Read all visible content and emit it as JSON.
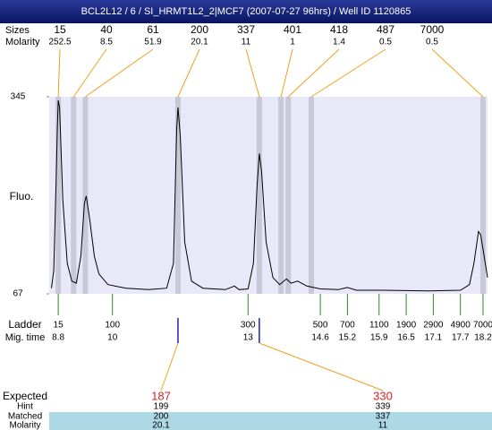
{
  "header": {
    "title": "BCL2L12 / 6 / SI_HRMT1L2_2|MCF7 (2007-07-27 96hrs) / Well ID 1120865"
  },
  "top": {
    "size_label": "Sizes",
    "molarity_label": "Molarity",
    "peaks": [
      {
        "size": 15,
        "molarity": 252.5,
        "time": 8.8
      },
      {
        "size": 40,
        "molarity": 8.5,
        "time": 9.14
      },
      {
        "size": 61,
        "molarity": 51.9,
        "time": 9.4
      },
      {
        "size": 200,
        "molarity": 20.1,
        "time": 11.45
      },
      {
        "size": 337,
        "molarity": 11,
        "time": 13.25
      },
      {
        "size": 401,
        "molarity": 1,
        "time": 13.73
      },
      {
        "size": 418,
        "molarity": 1.4,
        "time": 13.89
      },
      {
        "size": 487,
        "molarity": 0.5,
        "time": 14.4
      },
      {
        "size": 7000,
        "molarity": 0.5,
        "time": 18.2
      }
    ]
  },
  "plot": {
    "y_label": "Fluo.",
    "ylim": [
      67,
      345
    ],
    "yticks": [
      345,
      67
    ],
    "xlim": [
      8.6,
      18.3
    ],
    "trace": {
      "time": [
        8.65,
        8.7,
        8.75,
        8.78,
        8.8,
        8.83,
        8.9,
        9.0,
        9.1,
        9.2,
        9.3,
        9.38,
        9.42,
        9.5,
        9.6,
        9.7,
        9.9,
        10.3,
        10.8,
        11.2,
        11.35,
        11.42,
        11.45,
        11.5,
        11.6,
        11.75,
        12.0,
        12.5,
        12.7,
        12.8,
        13.0,
        13.12,
        13.2,
        13.25,
        13.3,
        13.4,
        13.55,
        13.7,
        13.85,
        13.95,
        14.1,
        14.3,
        14.6,
        15.0,
        15.2,
        15.4,
        16.0,
        17.0,
        17.7,
        17.9,
        18.0,
        18.1,
        18.15,
        18.25,
        18.3
      ],
      "fluo": [
        75,
        100,
        220,
        300,
        340,
        330,
        200,
        110,
        85,
        82,
        120,
        195,
        205,
        170,
        120,
        95,
        80,
        75,
        73,
        75,
        110,
        300,
        330,
        290,
        140,
        85,
        75,
        73,
        78,
        73,
        74,
        110,
        220,
        265,
        240,
        140,
        90,
        80,
        88,
        82,
        85,
        78,
        74,
        73,
        76,
        72,
        72,
        71,
        72,
        80,
        110,
        155,
        150,
        110,
        90
      ]
    }
  },
  "ladder": {
    "label": "Ladder",
    "time_label": "Mig. time",
    "sizes": [
      15,
      100,
      300,
      500,
      700,
      1100,
      1900,
      2900,
      4900,
      7000
    ],
    "times": [
      8.8,
      10,
      13,
      14.6,
      15.2,
      15.9,
      16.5,
      17.1,
      17.7,
      18.2
    ]
  },
  "table": {
    "expected_label": "Expected",
    "hint_label": "Hint",
    "matched_label": "Matched",
    "molarity_label": "Molarity",
    "columns": [
      {
        "expected": 187,
        "hint": 199,
        "matched": 200,
        "molarity": 20.1,
        "time": 11.45
      },
      {
        "expected": 330,
        "hint": 339,
        "matched": 337,
        "molarity": 11,
        "time": 13.25
      }
    ]
  }
}
